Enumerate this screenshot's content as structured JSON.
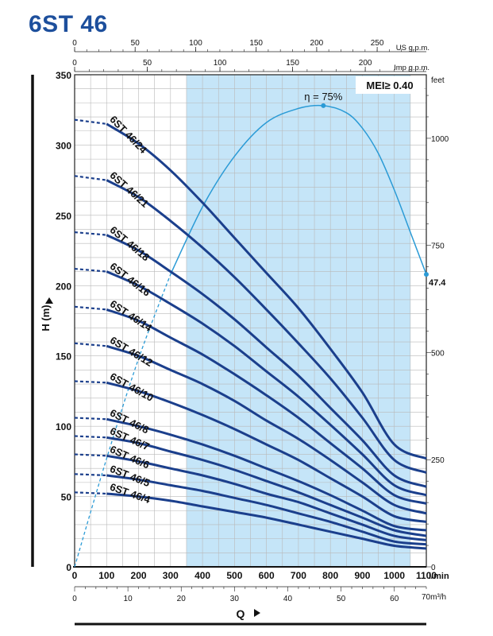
{
  "chart_data": {
    "type": "line",
    "title": "6ST 46",
    "ylabel": "H (m)",
    "xlabel": "Q",
    "x_unit": "l/min",
    "xlim": [
      0,
      1100
    ],
    "ylim": [
      0,
      350
    ],
    "x_ticks": [
      0,
      100,
      200,
      300,
      400,
      500,
      600,
      700,
      800,
      900,
      1000,
      1100
    ],
    "y_ticks": [
      0,
      50,
      100,
      150,
      200,
      250,
      300,
      350
    ],
    "secondary_axes": {
      "us_gpm": {
        "label": "US g.p.m.",
        "ticks": [
          0,
          50,
          100,
          150,
          200,
          250
        ]
      },
      "imp_gpm": {
        "label": "Imp g.p.m.",
        "ticks": [
          0,
          50,
          100,
          150,
          200
        ]
      },
      "m3h": {
        "label": "m³/h",
        "ticks": [
          0,
          10,
          20,
          30,
          40,
          50,
          60,
          70
        ]
      },
      "feet": {
        "label": "feet",
        "ticks": [
          0,
          250,
          500,
          750,
          1000
        ]
      }
    },
    "operating_range": [
      350,
      1050
    ],
    "badge": "MEI≥ 0.40",
    "efficiency": {
      "label": "η = 75%",
      "end_label": "47.4",
      "x": [
        0,
        100,
        200,
        300,
        400,
        500,
        600,
        700,
        778,
        850,
        900,
        950,
        1000,
        1050,
        1100
      ],
      "y": [
        0,
        77,
        148,
        208,
        256,
        292,
        316,
        326,
        328,
        323,
        312,
        294,
        268,
        238,
        208
      ]
    },
    "series": [
      {
        "name": "6ST 46/24",
        "x": [
          0,
          100,
          200,
          300,
          400,
          500,
          600,
          700,
          800,
          900,
          1000,
          1100
        ],
        "y": [
          318,
          315,
          301,
          282,
          259,
          234,
          209,
          184,
          155,
          124,
          87,
          77
        ]
      },
      {
        "name": "6ST 46/21",
        "x": [
          0,
          100,
          200,
          300,
          400,
          500,
          600,
          700,
          800,
          900,
          1000,
          1100
        ],
        "y": [
          278,
          275,
          263,
          246,
          227,
          206,
          183,
          159,
          134,
          106,
          76,
          67
        ]
      },
      {
        "name": "6ST 46/18",
        "x": [
          0,
          100,
          200,
          300,
          400,
          500,
          600,
          700,
          800,
          900,
          1000,
          1100
        ],
        "y": [
          238,
          236,
          225,
          210,
          194,
          176,
          156,
          136,
          113,
          90,
          65,
          57
        ]
      },
      {
        "name": "6ST 46/16",
        "x": [
          0,
          100,
          200,
          300,
          400,
          500,
          600,
          700,
          800,
          900,
          1000,
          1100
        ],
        "y": [
          212,
          210,
          200,
          187,
          173,
          157,
          139,
          121,
          101,
          80,
          58,
          51
        ]
      },
      {
        "name": "6ST 46/14",
        "x": [
          0,
          100,
          200,
          300,
          400,
          500,
          600,
          700,
          800,
          900,
          1000,
          1100
        ],
        "y": [
          185,
          183,
          175,
          163,
          151,
          137,
          122,
          106,
          88,
          70,
          51,
          45
        ]
      },
      {
        "name": "6ST 46/12",
        "x": [
          0,
          100,
          200,
          300,
          400,
          500,
          600,
          700,
          800,
          900,
          1000,
          1100
        ],
        "y": [
          159,
          157,
          150,
          140,
          130,
          118,
          104,
          91,
          76,
          60,
          44,
          38
        ]
      },
      {
        "name": "6ST 46/10",
        "x": [
          0,
          100,
          200,
          300,
          400,
          500,
          600,
          700,
          800,
          900,
          1000,
          1100
        ],
        "y": [
          132,
          131,
          125,
          117,
          108,
          98,
          87,
          76,
          63,
          50,
          36,
          32
        ]
      },
      {
        "name": "6ST 46/8",
        "x": [
          0,
          100,
          200,
          300,
          400,
          500,
          600,
          700,
          800,
          900,
          1000,
          1100
        ],
        "y": [
          106,
          105,
          100,
          94,
          87,
          79,
          70,
          61,
          51,
          40,
          29,
          26
        ]
      },
      {
        "name": "6ST 46/7",
        "x": [
          0,
          100,
          200,
          300,
          400,
          500,
          600,
          700,
          800,
          900,
          1000,
          1100
        ],
        "y": [
          93,
          92,
          88,
          82,
          76,
          69,
          61,
          53,
          44,
          35,
          26,
          22
        ]
      },
      {
        "name": "6ST 46/6",
        "x": [
          0,
          100,
          200,
          300,
          400,
          500,
          600,
          700,
          800,
          900,
          1000,
          1100
        ],
        "y": [
          80,
          79,
          75,
          70,
          65,
          59,
          52,
          46,
          38,
          30,
          22,
          19
        ]
      },
      {
        "name": "6ST 46/5",
        "x": [
          0,
          100,
          200,
          300,
          400,
          500,
          600,
          700,
          800,
          900,
          1000,
          1100
        ],
        "y": [
          66,
          65,
          62,
          58,
          54,
          49,
          44,
          38,
          32,
          25,
          18,
          16
        ]
      },
      {
        "name": "6ST 46/4",
        "x": [
          0,
          100,
          200,
          300,
          400,
          500,
          600,
          700,
          800,
          900,
          1000,
          1100
        ],
        "y": [
          53,
          52,
          50,
          47,
          43,
          39,
          35,
          30,
          25,
          20,
          15,
          13
        ]
      }
    ],
    "colors": {
      "curve": "#1b3f8c",
      "efficiency": "#2b9bd6",
      "band": "#c5e5f8",
      "title": "#1d4f9c"
    }
  }
}
